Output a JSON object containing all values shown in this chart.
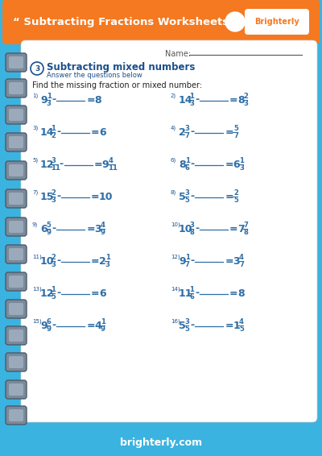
{
  "title": "“ Subtracting Fractions Worksheets",
  "brand": "Brighterly",
  "header_bg": "#F47920",
  "outer_bg": "#3BB3E0",
  "white": "#FFFFFF",
  "dark_blue": "#1B4F8A",
  "medium_blue": "#2E6EA6",
  "section_number": "3",
  "section_title": "Subtracting mixed numbers",
  "section_subtitle": "Answer the questions below",
  "instruction": "Find the missing fraction or mixed number:",
  "problems": [
    {
      "num": "1",
      "left_whole": "9",
      "left_num": "1",
      "left_den": "3",
      "result_whole": "8",
      "result_num": "",
      "result_den": ""
    },
    {
      "num": "2",
      "left_whole": "14",
      "left_num": "1",
      "left_den": "3",
      "result_whole": "8",
      "result_num": "2",
      "result_den": "3"
    },
    {
      "num": "3",
      "left_whole": "14",
      "left_num": "1",
      "left_den": "2",
      "result_whole": "6",
      "result_num": "",
      "result_den": ""
    },
    {
      "num": "4",
      "left_whole": "2",
      "left_num": "3",
      "left_den": "7",
      "result_whole": "",
      "result_num": "5",
      "result_den": "7"
    },
    {
      "num": "5",
      "left_whole": "12",
      "left_num": "3",
      "left_den": "11",
      "result_whole": "9",
      "result_num": "4",
      "result_den": "11"
    },
    {
      "num": "6",
      "left_whole": "8",
      "left_num": "1",
      "left_den": "6",
      "result_whole": "6",
      "result_num": "1",
      "result_den": "3"
    },
    {
      "num": "7",
      "left_whole": "15",
      "left_num": "2",
      "left_den": "3",
      "result_whole": "10",
      "result_num": "",
      "result_den": ""
    },
    {
      "num": "8",
      "left_whole": "5",
      "left_num": "3",
      "left_den": "5",
      "result_whole": "",
      "result_num": "2",
      "result_den": "5"
    },
    {
      "num": "9",
      "left_whole": "6",
      "left_num": "5",
      "left_den": "9",
      "result_whole": "3",
      "result_num": "4",
      "result_den": "9"
    },
    {
      "num": "10",
      "left_whole": "10",
      "left_num": "3",
      "left_den": "8",
      "result_whole": "7",
      "result_num": "7",
      "result_den": "8"
    },
    {
      "num": "11",
      "left_whole": "10",
      "left_num": "2",
      "left_den": "3",
      "result_whole": "2",
      "result_num": "1",
      "result_den": "3"
    },
    {
      "num": "12",
      "left_whole": "9",
      "left_num": "1",
      "left_den": "7",
      "result_whole": "3",
      "result_num": "4",
      "result_den": "7"
    },
    {
      "num": "13",
      "left_whole": "12",
      "left_num": "1",
      "left_den": "5",
      "result_whole": "6",
      "result_num": "",
      "result_den": ""
    },
    {
      "num": "14",
      "left_whole": "11",
      "left_num": "1",
      "left_den": "6",
      "result_whole": "8",
      "result_num": "",
      "result_den": ""
    },
    {
      "num": "15",
      "left_whole": "9",
      "left_num": "6",
      "left_den": "9",
      "result_whole": "4",
      "result_num": "1",
      "result_den": "9"
    },
    {
      "num": "16",
      "left_whole": "5",
      "left_num": "3",
      "left_den": "5",
      "result_whole": "1",
      "result_num": "4",
      "result_den": "5"
    }
  ],
  "footer_text": "brighterly.com",
  "ring_color": "#7A8A9A",
  "ring_edge": "#4A5A6A"
}
